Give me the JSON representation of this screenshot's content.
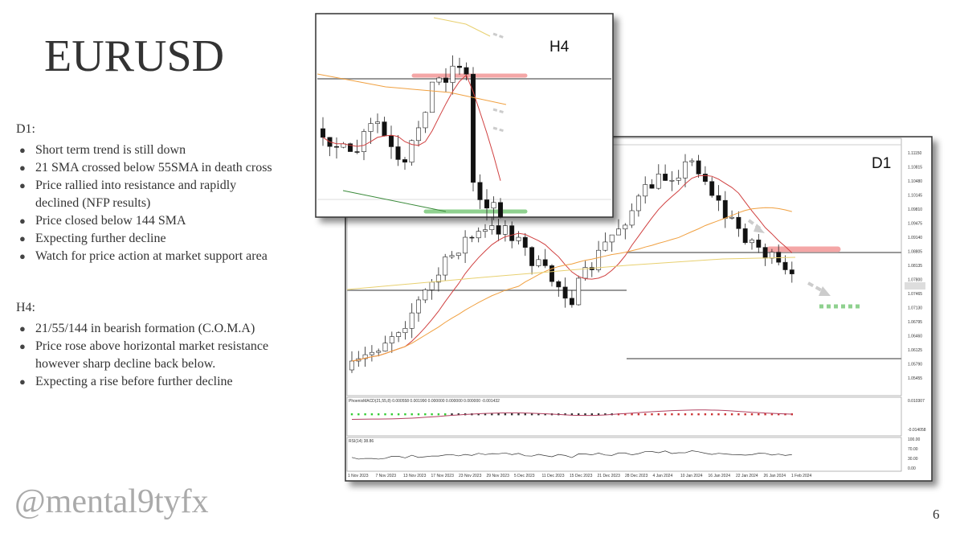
{
  "title": "EURUSD",
  "sections": [
    {
      "heading": "D1:",
      "bullets": [
        [
          "Short term trend is still down"
        ],
        [
          "21 SMA crossed below 55SMA in death cross"
        ],
        [
          "Price rallied into resistance and rapidly",
          "declined (NFP results)"
        ],
        [
          "Price closed below 144 SMA"
        ],
        [
          "Expecting further decline"
        ],
        [
          "Watch for price action at market support area"
        ]
      ]
    },
    {
      "heading": "H4:",
      "bullets": [
        [
          "21/55/144 in bearish formation (C.O.M.A)"
        ],
        [
          "Price rose above horizontal market resistance",
          "however sharp decline back below."
        ],
        [
          "Expecting a rise before further decline"
        ]
      ]
    }
  ],
  "handle": "@mental9tyfx",
  "page_number": "6",
  "d1_chart": {
    "label": "D1",
    "price_labels": [
      "1.11150",
      "1.10815",
      "1.10480",
      "1.10145",
      "1.09810",
      "1.09475",
      "1.09140",
      "1.08805",
      "1.08135",
      "1.07800",
      "1.07465",
      "1.07130",
      "1.06795",
      "1.06460",
      "1.06125",
      "1.05790",
      "1.05455"
    ],
    "dates": [
      "1 Nov 2023",
      "7 Nov 2023",
      "13 Nov 2023",
      "17 Nov 2023",
      "23 Nov 2023",
      "29 Nov 2023",
      "5 Dec 2023",
      "11 Dec 2023",
      "15 Dec 2023",
      "21 Dec 2023",
      "28 Dec 2023",
      "4 Jan 2024",
      "10 Jan 2024",
      "16 Jan 2024",
      "22 Jan 2024",
      "26 Jan 2024",
      "1 Feb 2024"
    ],
    "macd_label": "PhoenixMACD(21,55,8) 0.000558 0.001990 0.000000 0.000000 0.000000 -0.001432",
    "macd_axis": [
      "0.010307",
      "-0.014058"
    ],
    "rsi_label": "RSI(14) 38.86",
    "rsi_axis": [
      "100.00",
      "70.00",
      "30.00",
      "0.00"
    ]
  },
  "h4_chart": {
    "label": "H4"
  }
}
